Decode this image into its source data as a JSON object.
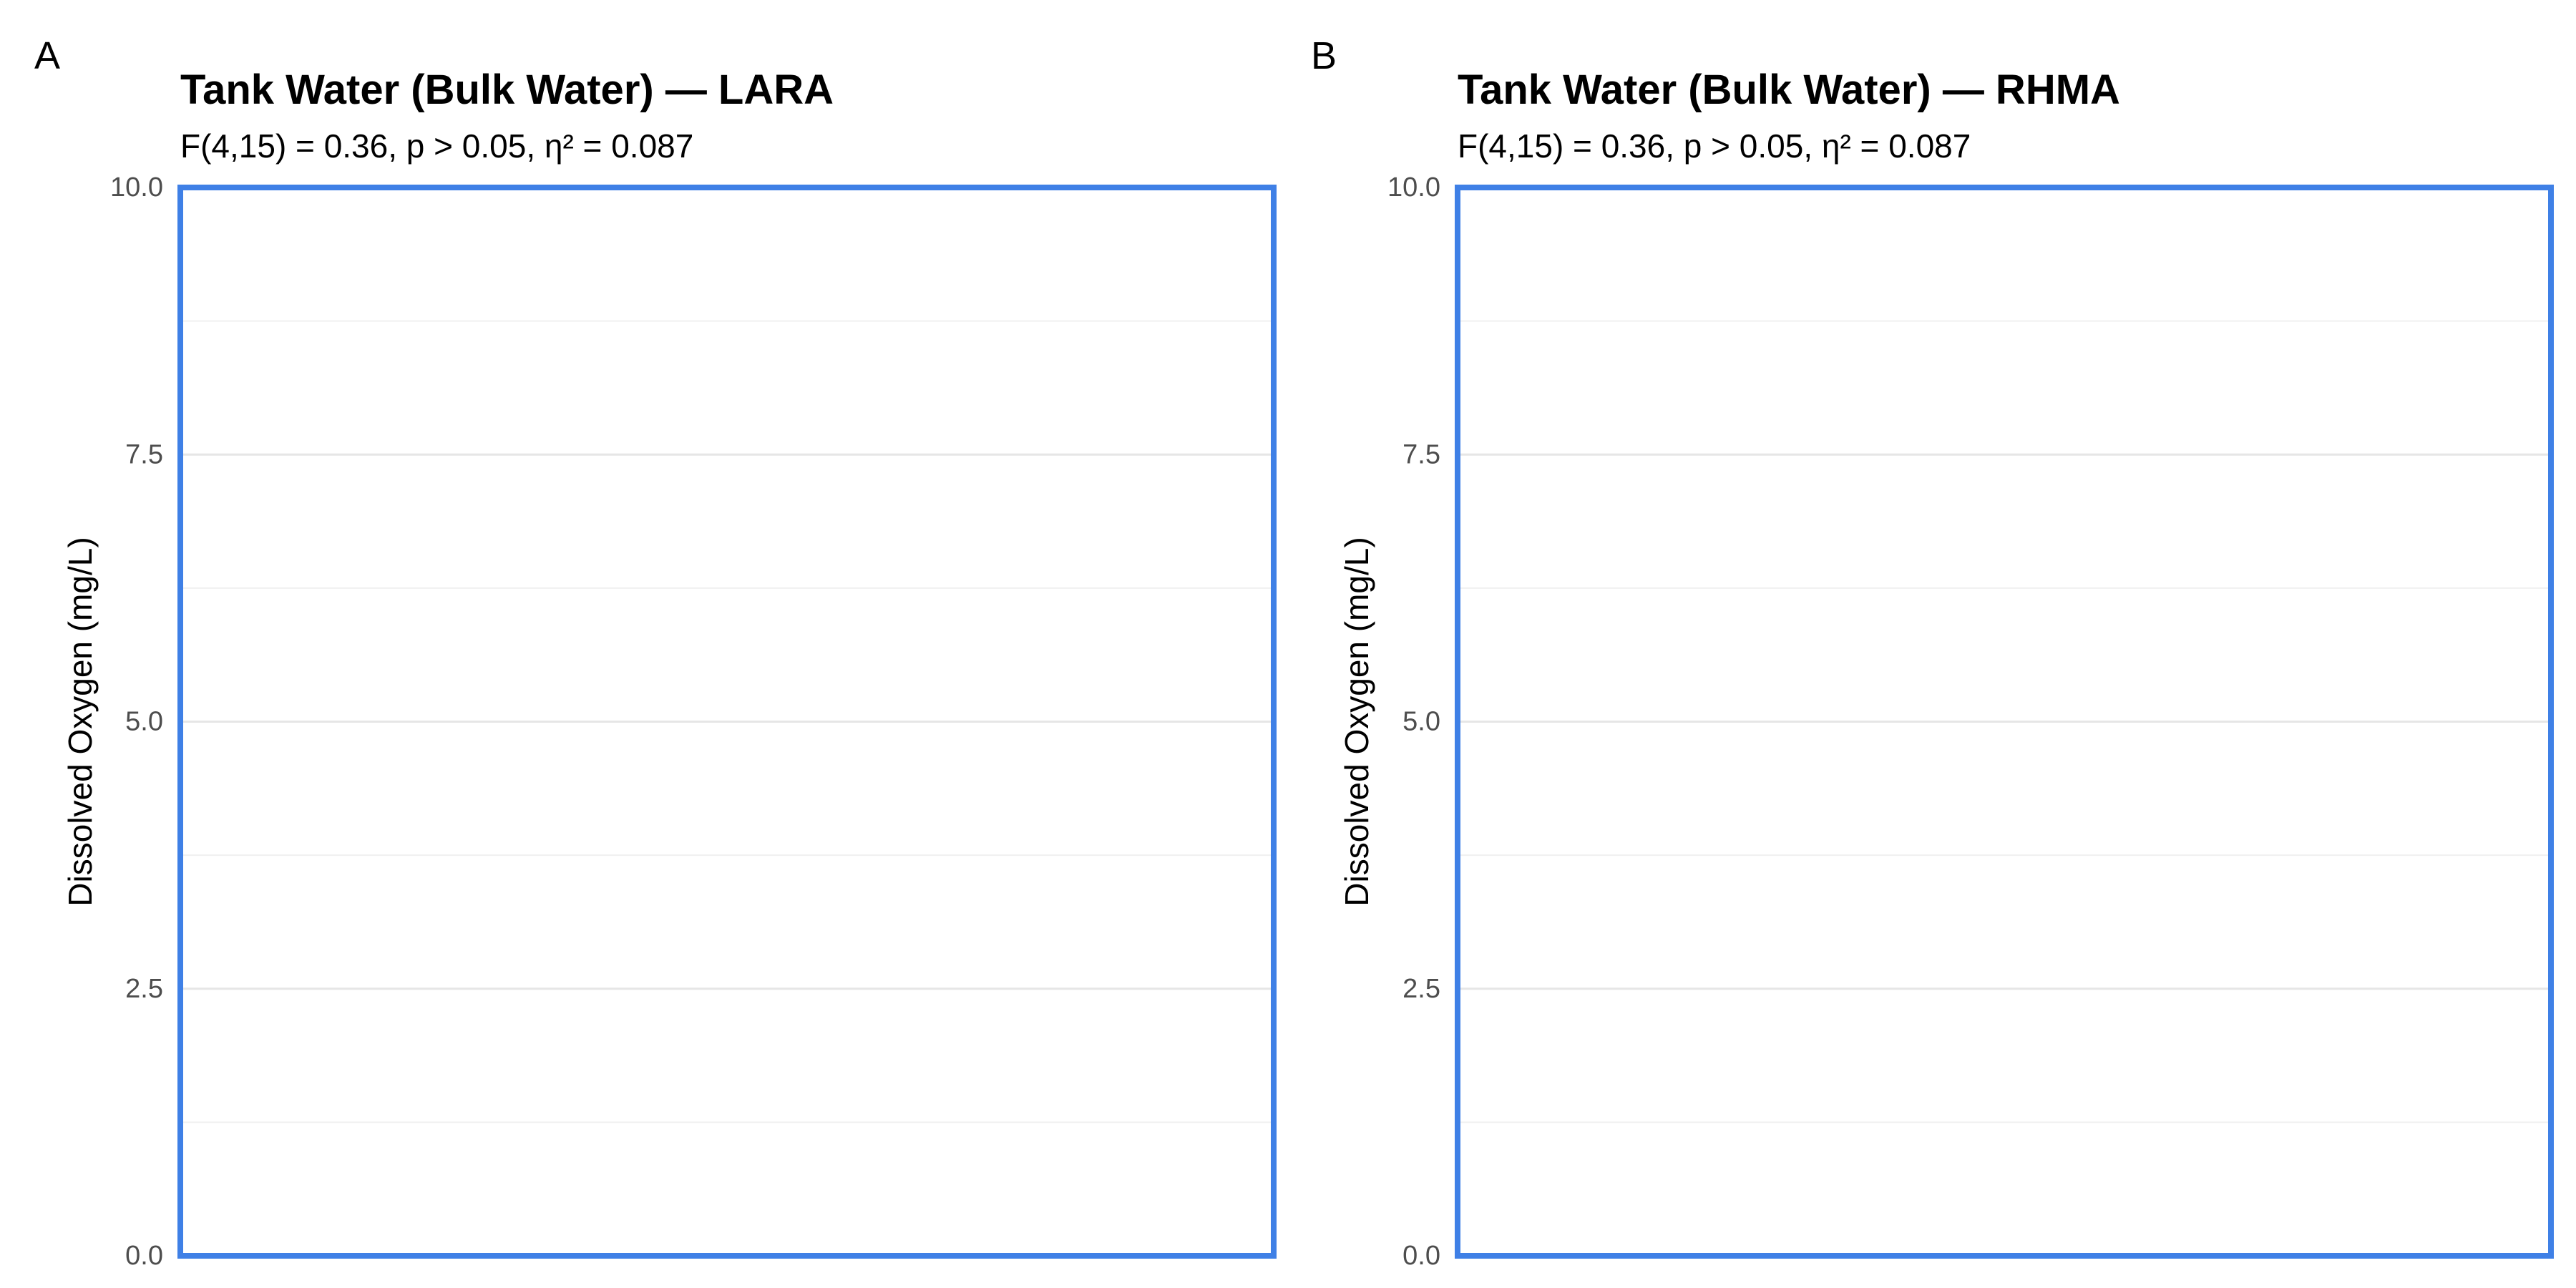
{
  "chart_data": [
    {
      "panel": "A",
      "type": "scatter",
      "title": "Tank Water (Bulk Water) — LARA",
      "subtitle": "F(4,15) = 0.36, p > 0.05, η² = 0.087",
      "xlabel": "",
      "ylabel": "Dissolved Oxygen (mg/L)",
      "ylim": [
        0,
        10
      ],
      "y_ticks": [
        "0.0",
        "2.5",
        "5.0",
        "7.5",
        "10.0"
      ],
      "grid": true,
      "series": []
    },
    {
      "panel": "B",
      "type": "scatter",
      "title": "Tank Water (Bulk Water) — RHMA",
      "subtitle": "F(4,15) = 0.36, p > 0.05, η² = 0.087",
      "xlabel": "",
      "ylabel": "Dissolved Oxygen (mg/L)",
      "ylim": [
        0,
        10
      ],
      "y_ticks": [
        "0.0",
        "2.5",
        "5.0",
        "7.5",
        "10.0"
      ],
      "grid": true,
      "series": []
    }
  ],
  "colors": {
    "plot_border": "#3f80e6"
  }
}
